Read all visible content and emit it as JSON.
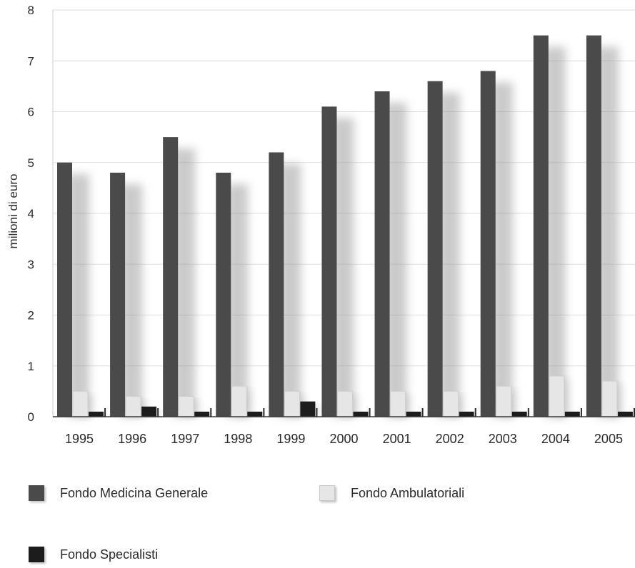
{
  "chart_data": {
    "type": "bar",
    "title": "",
    "xlabel": "",
    "ylabel": "milioni di euro",
    "ylim": [
      0,
      8
    ],
    "yticks": [
      "0",
      "1",
      "2",
      "3",
      "4",
      "5",
      "6",
      "7",
      "8"
    ],
    "grid": true,
    "legend_position": "bottom",
    "categories": [
      "1995",
      "1996",
      "1997",
      "1998",
      "1999",
      "2000",
      "2001",
      "2002",
      "2003",
      "2004",
      "2005"
    ],
    "series": [
      {
        "name": "Fondo Medicina Generale",
        "color": "#4a4a4a",
        "values": [
          5.0,
          4.8,
          5.5,
          4.8,
          5.2,
          6.1,
          6.4,
          6.6,
          6.8,
          7.5,
          7.5
        ]
      },
      {
        "name": "Fondo Ambulatoriali",
        "color": "#e6e6e6",
        "values": [
          0.5,
          0.4,
          0.4,
          0.6,
          0.5,
          0.5,
          0.5,
          0.5,
          0.6,
          0.8,
          0.7
        ]
      },
      {
        "name": "Fondo Specialisti",
        "color": "#1c1c1c",
        "values": [
          0.1,
          0.2,
          0.1,
          0.1,
          0.3,
          0.1,
          0.1,
          0.1,
          0.1,
          0.1,
          0.1
        ]
      }
    ]
  }
}
